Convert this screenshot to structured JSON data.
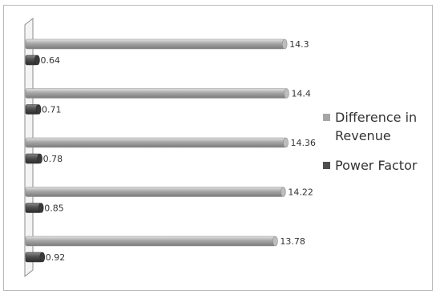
{
  "chart_data": {
    "type": "bar",
    "orientation": "horizontal",
    "title": "",
    "xlabel": "",
    "ylabel": "",
    "xlim": [
      0,
      16
    ],
    "grid": false,
    "legend_placement": "right",
    "categories": [
      "",
      "",
      "",
      "",
      ""
    ],
    "series": [
      {
        "name": "Difference in Revenue",
        "color": "#a6a6a6",
        "values": [
          14.3,
          14.4,
          14.36,
          14.22,
          13.78
        ],
        "labels": [
          "14.3",
          "14.4",
          "14.36",
          "14.22",
          "13.78"
        ]
      },
      {
        "name": "Power Factor",
        "color": "#4f4f4f",
        "values": [
          0.64,
          0.71,
          0.78,
          0.85,
          0.92
        ],
        "labels": [
          "0.64",
          "0.71",
          "0.78",
          "0.85",
          "0.92"
        ]
      }
    ]
  }
}
